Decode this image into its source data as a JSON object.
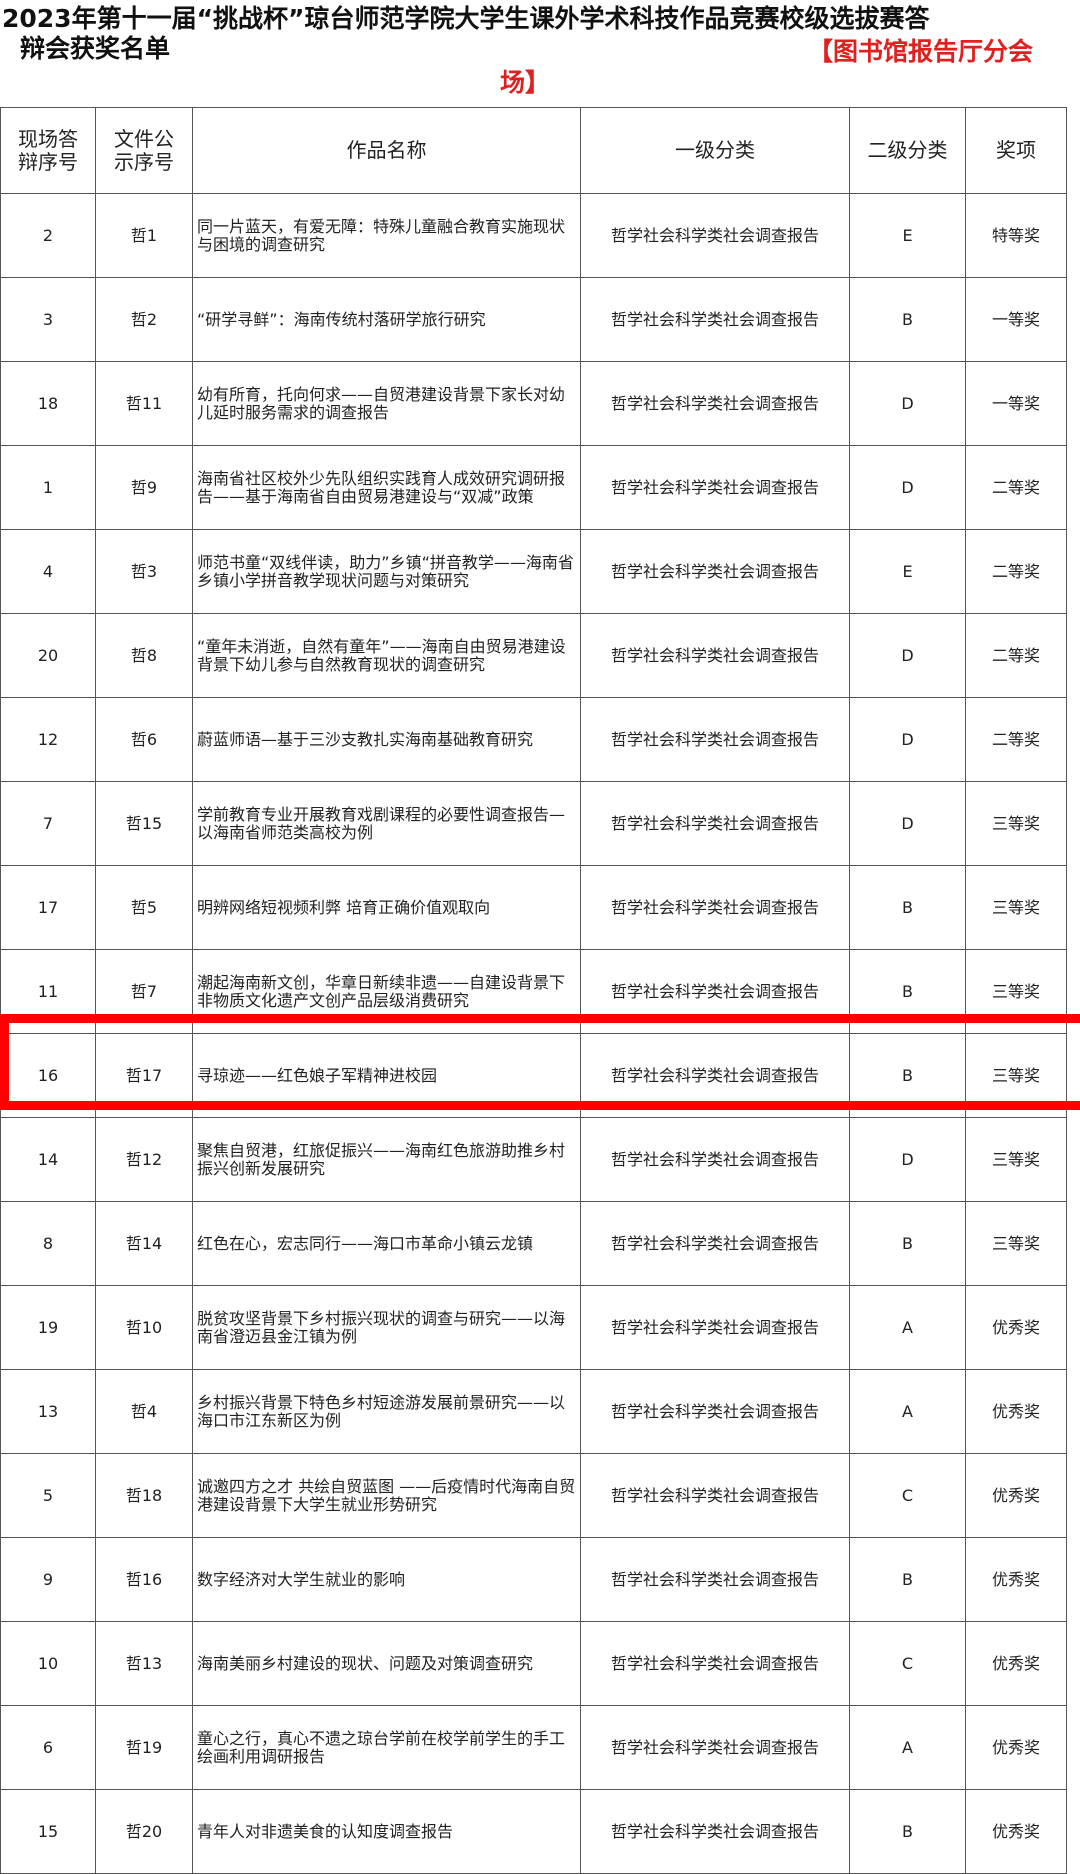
{
  "title": {
    "line1": "2023年第十一届“挑战杯”琼台师范学院大学生课外学术科技作品竞赛校级选拔赛答",
    "line2": "辩会获奖名单",
    "venue_part1": "【图书馆报告厅分会",
    "venue_part2": "场】"
  },
  "colors": {
    "venue": "#e0201f",
    "highlight": "#ff0000"
  },
  "table": {
    "headers": [
      "现场答辩序号",
      "文件公示序号",
      "作品名称",
      "一级分类",
      "二级分类",
      "奖项"
    ],
    "rows": [
      {
        "seq": "2",
        "file": "哲1",
        "name": "同一片蓝天，有爱无障：特殊儿童融合教育实施现状与困境的调查研究",
        "cat1": "哲学社会科学类社会调查报告",
        "cat2": "E",
        "award": "特等奖"
      },
      {
        "seq": "3",
        "file": "哲2",
        "name": "“研学寻鲜”：海南传统村落研学旅行研究",
        "cat1": "哲学社会科学类社会调查报告",
        "cat2": "B",
        "award": "一等奖"
      },
      {
        "seq": "18",
        "file": "哲11",
        "name": "幼有所育，托向何求——自贸港建设背景下家长对幼儿延时服务需求的调查报告",
        "cat1": "哲学社会科学类社会调查报告",
        "cat2": "D",
        "award": "一等奖"
      },
      {
        "seq": "1",
        "file": "哲9",
        "name": "海南省社区校外少先队组织实践育人成效研究调研报告——基于海南省自由贸易港建设与“双减”政策",
        "cat1": "哲学社会科学类社会调查报告",
        "cat2": "D",
        "award": "二等奖"
      },
      {
        "seq": "4",
        "file": "哲3",
        "name": "师范书童“双线伴读，助力”乡镇“拼音教学——海南省乡镇小学拼音教学现状问题与对策研究",
        "cat1": "哲学社会科学类社会调查报告",
        "cat2": "E",
        "award": "二等奖"
      },
      {
        "seq": "20",
        "file": "哲8",
        "name": "“童年未消逝，自然有童年”——海南自由贸易港建设背景下幼儿参与自然教育现状的调查研究",
        "cat1": "哲学社会科学类社会调查报告",
        "cat2": "D",
        "award": "二等奖"
      },
      {
        "seq": "12",
        "file": "哲6",
        "name": "蔚蓝师语—基于三沙支教扎实海南基础教育研究",
        "cat1": "哲学社会科学类社会调查报告",
        "cat2": "D",
        "award": "二等奖"
      },
      {
        "seq": "7",
        "file": "哲15",
        "name": "学前教育专业开展教育戏剧课程的必要性调查报告—以海南省师范类高校为例",
        "cat1": "哲学社会科学类社会调查报告",
        "cat2": "D",
        "award": "三等奖"
      },
      {
        "seq": "17",
        "file": "哲5",
        "name": "明辨网络短视频利弊 培育正确价值观取向",
        "cat1": "哲学社会科学类社会调查报告",
        "cat2": "B",
        "award": "三等奖"
      },
      {
        "seq": "11",
        "file": "哲7",
        "name": "潮起海南新文创，华章日新续非遗——自建设背景下非物质文化遗产文创产品层级消费研究",
        "cat1": "哲学社会科学类社会调查报告",
        "cat2": "B",
        "award": "三等奖"
      },
      {
        "seq": "16",
        "file": "哲17",
        "name": "寻琼迹——红色娘子军精神进校园",
        "cat1": "哲学社会科学类社会调查报告",
        "cat2": "B",
        "award": "三等奖"
      },
      {
        "seq": "14",
        "file": "哲12",
        "name": "聚焦自贸港，红旅促振兴——海南红色旅游助推乡村振兴创新发展研究",
        "cat1": "哲学社会科学类社会调查报告",
        "cat2": "D",
        "award": "三等奖"
      },
      {
        "seq": "8",
        "file": "哲14",
        "name": "红色在心，宏志同行——海口市革命小镇云龙镇",
        "cat1": "哲学社会科学类社会调查报告",
        "cat2": "B",
        "award": "三等奖"
      },
      {
        "seq": "19",
        "file": "哲10",
        "name": "脱贫攻坚背景下乡村振兴现状的调查与研究——以海南省澄迈县金江镇为例",
        "cat1": "哲学社会科学类社会调查报告",
        "cat2": "A",
        "award": "优秀奖"
      },
      {
        "seq": "13",
        "file": "哲4",
        "name": "乡村振兴背景下特色乡村短途游发展前景研究——以海口市江东新区为例",
        "cat1": "哲学社会科学类社会调查报告",
        "cat2": "A",
        "award": "优秀奖"
      },
      {
        "seq": "5",
        "file": "哲18",
        "name": "诚邀四方之才 共绘自贸蓝图 ——后疫情时代海南自贸港建设背景下大学生就业形势研究",
        "cat1": "哲学社会科学类社会调查报告",
        "cat2": "C",
        "award": "优秀奖"
      },
      {
        "seq": "9",
        "file": "哲16",
        "name": "数字经济对大学生就业的影响",
        "cat1": "哲学社会科学类社会调查报告",
        "cat2": "B",
        "award": "优秀奖"
      },
      {
        "seq": "10",
        "file": "哲13",
        "name": "海南美丽乡村建设的现状、问题及对策调查研究",
        "cat1": "哲学社会科学类社会调查报告",
        "cat2": "C",
        "award": "优秀奖"
      },
      {
        "seq": "6",
        "file": "哲19",
        "name": "童心之行，真心不遗之琼台学前在校学前学生的手工绘画利用调研报告",
        "cat1": "哲学社会科学类社会调查报告",
        "cat2": "A",
        "award": "优秀奖"
      },
      {
        "seq": "15",
        "file": "哲20",
        "name": "青年人对非遗美食的认知度调查报告",
        "cat1": "哲学社会科学类社会调查报告",
        "cat2": "B",
        "award": "优秀奖"
      }
    ]
  }
}
